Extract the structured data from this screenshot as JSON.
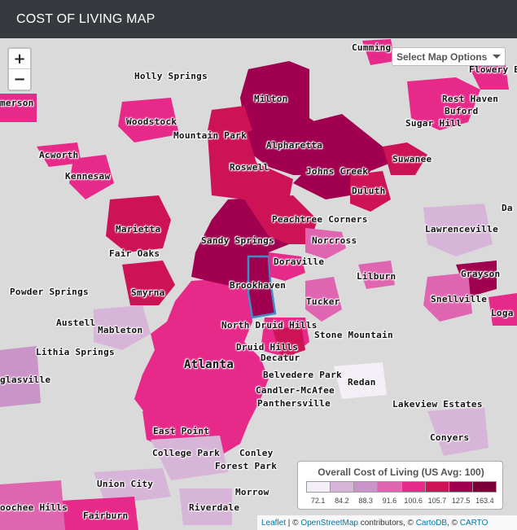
{
  "header": {
    "title": "COST OF LIVING MAP"
  },
  "controls": {
    "zoom_in": "+",
    "zoom_out": "−",
    "map_options_label": "Select Map Options"
  },
  "legend": {
    "title": "Overall Cost of Living (US Avg: 100)",
    "ticks": [
      "72.1",
      "84.2",
      "88.3",
      "91.6",
      "100.6",
      "105.7",
      "127.5",
      "163.4"
    ],
    "colors": [
      "#f4eef6",
      "#d7b5d8",
      "#c994c7",
      "#df65b0",
      "#e7298a",
      "#ce1256",
      "#a0004f",
      "#7a0038"
    ]
  },
  "places": [
    {
      "name": "Cumming"
    },
    {
      "name": "Flowery B"
    },
    {
      "name": "Holly Springs"
    },
    {
      "name": "merson"
    },
    {
      "name": "Milton"
    },
    {
      "name": "Rest Haven"
    },
    {
      "name": "Buford"
    },
    {
      "name": "Woodstock"
    },
    {
      "name": "Sugar Hill"
    },
    {
      "name": "Mountain Park"
    },
    {
      "name": "Alpharetta"
    },
    {
      "name": "Acworth"
    },
    {
      "name": "Suwanee"
    },
    {
      "name": "Kennesaw"
    },
    {
      "name": "Roswell"
    },
    {
      "name": "Johns Creek"
    },
    {
      "name": "Duluth"
    },
    {
      "name": "Da"
    },
    {
      "name": "Marietta"
    },
    {
      "name": "Peachtree Corners"
    },
    {
      "name": "Lawrenceville"
    },
    {
      "name": "Sandy Springs"
    },
    {
      "name": "Norcross"
    },
    {
      "name": "Fair Oaks"
    },
    {
      "name": "Doraville"
    },
    {
      "name": "Lilburn"
    },
    {
      "name": "Grayson"
    },
    {
      "name": "Powder Springs"
    },
    {
      "name": "Brookhaven"
    },
    {
      "name": "Smyrna"
    },
    {
      "name": "Tucker"
    },
    {
      "name": "Snellville"
    },
    {
      "name": "Loga"
    },
    {
      "name": "Austell"
    },
    {
      "name": "North Druid Hills"
    },
    {
      "name": "Mableton"
    },
    {
      "name": "Stone Mountain"
    },
    {
      "name": "Lithia Springs"
    },
    {
      "name": "Druid Hills"
    },
    {
      "name": "Decatur"
    },
    {
      "name": "Atlanta"
    },
    {
      "name": "Belvedere Park"
    },
    {
      "name": "glasville"
    },
    {
      "name": "Redan"
    },
    {
      "name": "Candler-McAfee"
    },
    {
      "name": "Panthersville"
    },
    {
      "name": "Lakeview Estates"
    },
    {
      "name": "East Point"
    },
    {
      "name": "Conyers"
    },
    {
      "name": "College Park"
    },
    {
      "name": "Conley"
    },
    {
      "name": "Forest Park"
    },
    {
      "name": "Union City"
    },
    {
      "name": "Morrow"
    },
    {
      "name": "oochee Hills"
    },
    {
      "name": "Riverdale"
    },
    {
      "name": "Fairburn"
    }
  ],
  "attribution": {
    "leaflet": "Leaflet",
    "sep1": " | © ",
    "osm": "OpenStreetMap",
    "contrib": " contributors, © ",
    "carto": "CartoDB",
    "sep2": ", © ",
    "carto2": "CARTO"
  }
}
